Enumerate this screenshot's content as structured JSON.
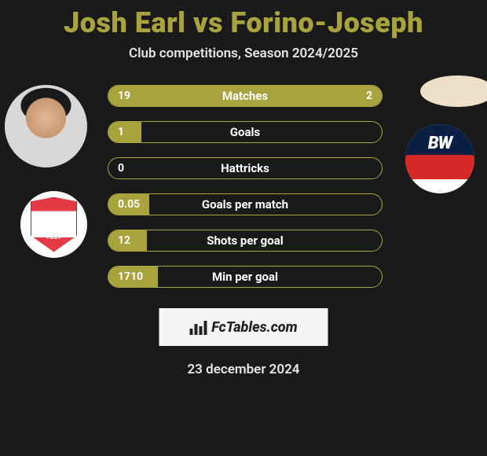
{
  "title": "Josh Earl vs Forino-Joseph",
  "subtitle": "Club competitions, Season 2024/2025",
  "footer_brand": "FcTables.com",
  "footer_date": "23 december 2024",
  "colors": {
    "accent": "#a8a33c",
    "background": "#1a1a1a",
    "text": "#ffffff"
  },
  "player_left": {
    "name": "Josh Earl",
    "club": "Barnsley FC",
    "club_year": "1887"
  },
  "player_right": {
    "name": "Forino-Joseph",
    "club": "Bolton Wanderers",
    "club_initials": "BW"
  },
  "stats": [
    {
      "label": "Matches",
      "left_value": "19",
      "right_value": "2",
      "left_pct": 77,
      "right_pct": 23
    },
    {
      "label": "Goals",
      "left_value": "1",
      "right_value": "",
      "left_pct": 12,
      "right_pct": 0
    },
    {
      "label": "Hattricks",
      "left_value": "0",
      "right_value": "",
      "left_pct": 0,
      "right_pct": 0
    },
    {
      "label": "Goals per match",
      "left_value": "0.05",
      "right_value": "",
      "left_pct": 15,
      "right_pct": 0
    },
    {
      "label": "Shots per goal",
      "left_value": "12",
      "right_value": "",
      "left_pct": 14,
      "right_pct": 0
    },
    {
      "label": "Min per goal",
      "left_value": "1710",
      "right_value": "",
      "left_pct": 18,
      "right_pct": 0
    }
  ]
}
